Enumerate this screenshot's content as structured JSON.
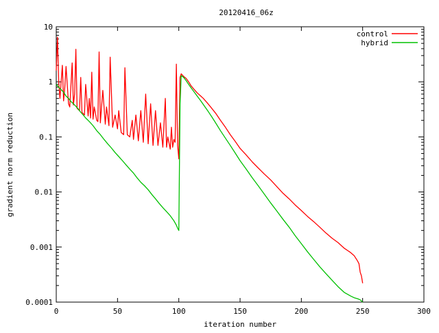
{
  "chart_data": {
    "type": "line",
    "title": "20120416_06z",
    "xlabel": "iteration number",
    "ylabel": "gradient norm reduction",
    "xlim": [
      0,
      300
    ],
    "ylim": [
      0.0001,
      10
    ],
    "yscale": "log",
    "grid": false,
    "legend_position": "top-right",
    "x_ticks": [
      "0",
      "50",
      "100",
      "150",
      "200",
      "250",
      "300"
    ],
    "y_ticks": [
      "10",
      "1",
      "0.1",
      "0.01",
      "0.001",
      "0.0001"
    ],
    "series": [
      {
        "name": "control",
        "color": "#ff0000",
        "x": [
          0,
          1,
          2,
          3,
          5,
          6,
          7,
          8,
          10,
          11,
          13,
          14,
          15,
          16,
          17,
          19,
          20,
          21,
          23,
          24,
          26,
          27,
          28,
          29,
          30,
          31,
          33,
          34,
          35,
          36,
          38,
          40,
          41,
          43,
          44,
          46,
          48,
          50,
          51,
          53,
          55,
          56,
          58,
          60,
          62,
          63,
          65,
          67,
          69,
          71,
          73,
          75,
          77,
          79,
          81,
          83,
          85,
          87,
          89,
          90,
          91,
          93,
          94,
          95,
          96,
          97,
          98,
          99,
          100,
          101,
          102,
          104,
          106,
          108,
          110,
          112,
          115,
          118,
          120,
          123,
          126,
          130,
          134,
          138,
          142,
          146,
          150,
          155,
          160,
          165,
          170,
          175,
          180,
          185,
          190,
          195,
          200,
          205,
          210,
          215,
          220,
          225,
          230,
          235,
          240,
          243,
          245,
          246,
          247,
          248,
          249,
          250
        ],
        "y": [
          1.6,
          6.5,
          1.0,
          0.5,
          2.0,
          0.45,
          0.8,
          1.9,
          0.4,
          0.35,
          2.2,
          0.38,
          0.6,
          3.9,
          0.33,
          0.3,
          1.2,
          0.28,
          0.25,
          0.9,
          0.24,
          0.5,
          0.22,
          1.5,
          0.21,
          0.35,
          0.2,
          0.19,
          3.5,
          0.18,
          0.7,
          0.17,
          0.35,
          0.16,
          2.8,
          0.15,
          0.25,
          0.14,
          0.3,
          0.12,
          0.11,
          1.8,
          0.11,
          0.1,
          0.2,
          0.09,
          0.25,
          0.085,
          0.3,
          0.08,
          0.6,
          0.075,
          0.4,
          0.07,
          0.3,
          0.07,
          0.18,
          0.065,
          0.5,
          0.065,
          0.1,
          0.06,
          0.15,
          0.065,
          0.09,
          0.08,
          2.1,
          0.07,
          0.04,
          1.2,
          1.4,
          1.25,
          1.15,
          1.0,
          0.85,
          0.75,
          0.63,
          0.55,
          0.5,
          0.42,
          0.35,
          0.27,
          0.2,
          0.15,
          0.11,
          0.083,
          0.062,
          0.047,
          0.035,
          0.027,
          0.021,
          0.0165,
          0.0125,
          0.0095,
          0.0075,
          0.0058,
          0.0046,
          0.0036,
          0.0029,
          0.0023,
          0.0018,
          0.00145,
          0.0012,
          0.00095,
          0.0008,
          0.0007,
          0.0006,
          0.00055,
          0.0005,
          0.00035,
          0.0003,
          0.00022
        ]
      },
      {
        "name": "hybrid",
        "color": "#00c000",
        "x": [
          0,
          2,
          4,
          6,
          8,
          10,
          12,
          14,
          16,
          18,
          20,
          22,
          24,
          26,
          28,
          30,
          33,
          36,
          39,
          42,
          45,
          48,
          51,
          54,
          57,
          60,
          63,
          66,
          69,
          72,
          75,
          78,
          81,
          84,
          87,
          90,
          93,
          96,
          98,
          99,
          100,
          101,
          102,
          104,
          106,
          108,
          110,
          112,
          115,
          118,
          121,
          124,
          127,
          130,
          134,
          138,
          142,
          146,
          150,
          155,
          160,
          165,
          170,
          175,
          180,
          185,
          190,
          195,
          200,
          205,
          210,
          215,
          220,
          225,
          230,
          235,
          240,
          243,
          246,
          248,
          249,
          250
        ],
        "y": [
          0.9,
          0.8,
          0.72,
          0.65,
          0.55,
          0.5,
          0.44,
          0.4,
          0.36,
          0.32,
          0.28,
          0.25,
          0.22,
          0.2,
          0.18,
          0.16,
          0.13,
          0.11,
          0.09,
          0.075,
          0.063,
          0.052,
          0.044,
          0.037,
          0.031,
          0.026,
          0.022,
          0.018,
          0.015,
          0.013,
          0.011,
          0.009,
          0.0075,
          0.0062,
          0.0052,
          0.0044,
          0.0037,
          0.003,
          0.0025,
          0.0022,
          0.002,
          0.4,
          1.3,
          1.2,
          1.05,
          0.9,
          0.78,
          0.68,
          0.55,
          0.45,
          0.36,
          0.29,
          0.23,
          0.18,
          0.13,
          0.095,
          0.07,
          0.051,
          0.037,
          0.026,
          0.018,
          0.0128,
          0.009,
          0.0063,
          0.0045,
          0.0032,
          0.0023,
          0.0016,
          0.00115,
          0.00082,
          0.0006,
          0.00044,
          0.00033,
          0.00025,
          0.00019,
          0.00015,
          0.00013,
          0.00012,
          0.000115,
          0.00011,
          0.000105,
          0.0001
        ]
      }
    ]
  }
}
